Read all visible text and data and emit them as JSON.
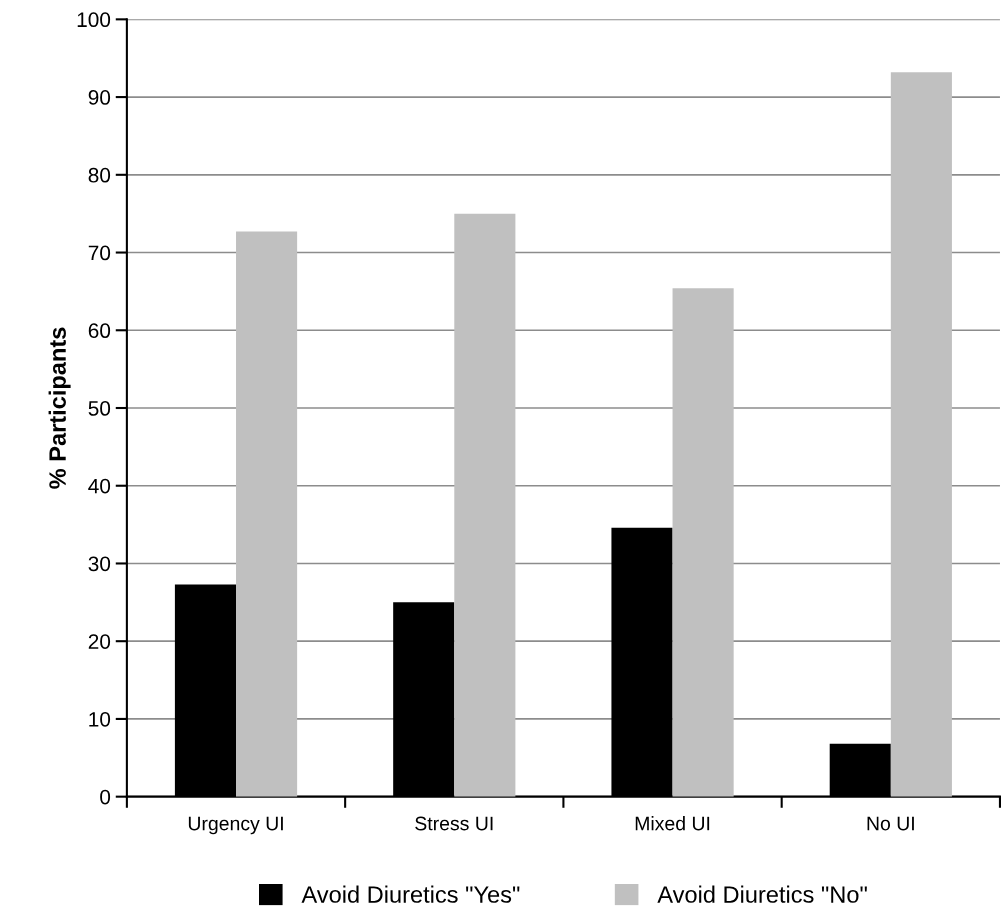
{
  "chart_data": {
    "type": "bar",
    "ylabel": "% Participants",
    "categories": [
      "Urgency UI",
      "Stress UI",
      "Mixed UI",
      "No UI"
    ],
    "series": [
      {
        "name": "Avoid Diuretics \"Yes\"",
        "color": "#000000",
        "values": [
          27.3,
          25.0,
          34.6,
          6.8
        ]
      },
      {
        "name": "Avoid Diuretics \"No\"",
        "color": "#c0c0c0",
        "values": [
          72.7,
          75.0,
          65.4,
          93.2
        ]
      }
    ],
    "ylim": [
      0,
      100
    ],
    "yticks": [
      0,
      10,
      20,
      30,
      40,
      50,
      60,
      70,
      80,
      90,
      100
    ],
    "grid": "y",
    "legend": "bottom"
  }
}
